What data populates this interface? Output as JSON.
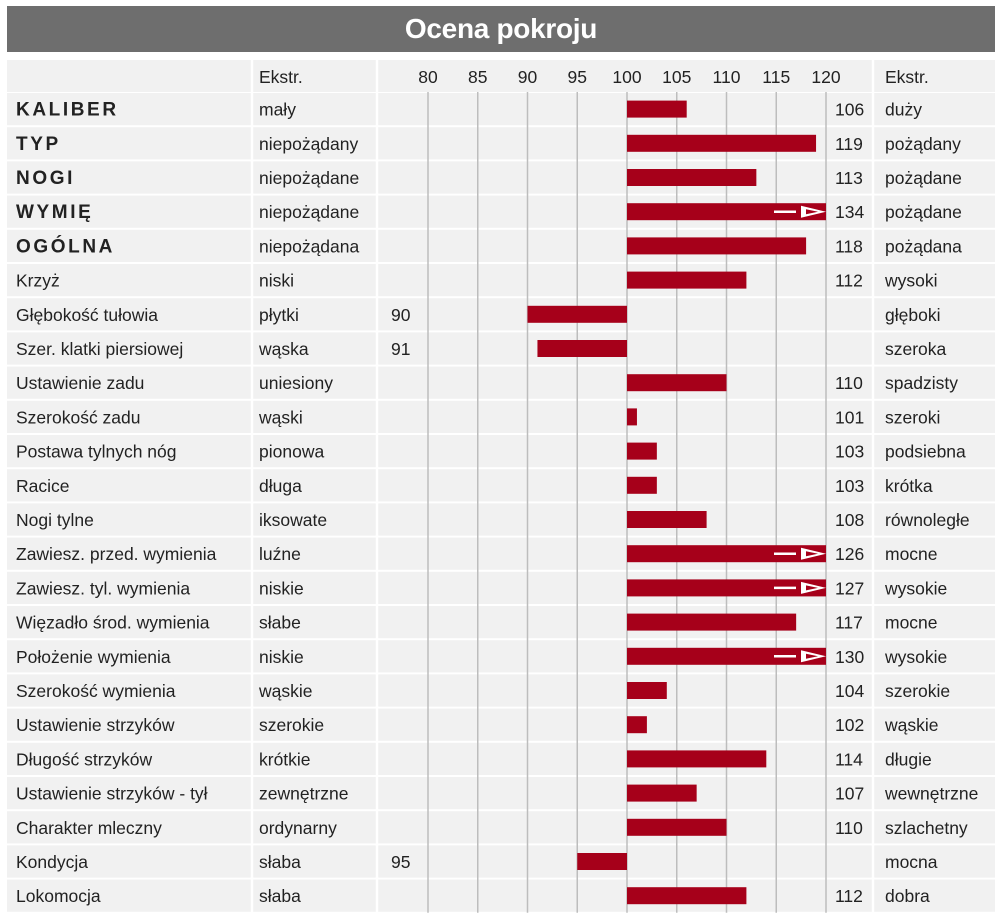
{
  "title": "Ocena pokroju",
  "header": {
    "left_extreme_label": "Ekstr.",
    "right_extreme_label": "Ekstr.",
    "ticks": [
      "80",
      "85",
      "90",
      "95",
      "100",
      "105",
      "110",
      "115",
      "120"
    ]
  },
  "colors": {
    "bar": "#a6001a",
    "title_background": "#6e6e6e",
    "row_shade": "#f1f1f1",
    "grid": "#bdbdbd"
  },
  "chart_data": {
    "type": "bar",
    "orientation": "horizontal",
    "title": "Ocena pokroju",
    "baseline": 100,
    "xlim": [
      80,
      120
    ],
    "xticks": [
      80,
      85,
      90,
      95,
      100,
      105,
      110,
      115,
      120
    ],
    "grid": true,
    "overflow_marker": "arrow for values beyond 120",
    "rows": [
      {
        "trait": "KALIBER",
        "major": true,
        "left": "mały",
        "value": 106,
        "right": "duży"
      },
      {
        "trait": "TYP",
        "major": true,
        "left": "niepożądany",
        "value": 119,
        "right": "pożądany"
      },
      {
        "trait": "NOGI",
        "major": true,
        "left": "niepożądane",
        "value": 113,
        "right": "pożądane"
      },
      {
        "trait": "WYMIĘ",
        "major": true,
        "left": "niepożądane",
        "value": 134,
        "right": "pożądane"
      },
      {
        "trait": "OGÓLNA",
        "major": true,
        "left": "niepożądana",
        "value": 118,
        "right": "pożądana"
      },
      {
        "trait": "Krzyż",
        "major": false,
        "left": "niski",
        "value": 112,
        "right": "wysoki"
      },
      {
        "trait": "Głębokość tułowia",
        "major": false,
        "left": "płytki",
        "value": 90,
        "right": "głęboki"
      },
      {
        "trait": "Szer. klatki piersiowej",
        "major": false,
        "left": "wąska",
        "value": 91,
        "right": "szeroka"
      },
      {
        "trait": "Ustawienie zadu",
        "major": false,
        "left": "uniesiony",
        "value": 110,
        "right": "spadzisty"
      },
      {
        "trait": "Szerokość zadu",
        "major": false,
        "left": "wąski",
        "value": 101,
        "right": "szeroki"
      },
      {
        "trait": "Postawa tylnych nóg",
        "major": false,
        "left": "pionowa",
        "value": 103,
        "right": "podsiebna"
      },
      {
        "trait": "Racice",
        "major": false,
        "left": "długa",
        "value": 103,
        "right": "krótka"
      },
      {
        "trait": "Nogi tylne",
        "major": false,
        "left": "iksowate",
        "value": 108,
        "right": "równoległe"
      },
      {
        "trait": "Zawiesz. przed. wymienia",
        "major": false,
        "left": "luźne",
        "value": 126,
        "right": "mocne"
      },
      {
        "trait": "Zawiesz. tyl. wymienia",
        "major": false,
        "left": "niskie",
        "value": 127,
        "right": "wysokie"
      },
      {
        "trait": "Więzadło środ. wymienia",
        "major": false,
        "left": "słabe",
        "value": 117,
        "right": "mocne"
      },
      {
        "trait": "Położenie wymienia",
        "major": false,
        "left": "niskie",
        "value": 130,
        "right": "wysokie"
      },
      {
        "trait": "Szerokość wymienia",
        "major": false,
        "left": "wąskie",
        "value": 104,
        "right": "szerokie"
      },
      {
        "trait": "Ustawienie strzyków",
        "major": false,
        "left": "szerokie",
        "value": 102,
        "right": "wąskie"
      },
      {
        "trait": "Długość strzyków",
        "major": false,
        "left": "krótkie",
        "value": 114,
        "right": "długie"
      },
      {
        "trait": "Ustawienie strzyków - tył",
        "major": false,
        "left": "zewnętrzne",
        "value": 107,
        "right": "wewnętrzne"
      },
      {
        "trait": "Charakter mleczny",
        "major": false,
        "left": "ordynarny",
        "value": 110,
        "right": "szlachetny"
      },
      {
        "trait": "Kondycja",
        "major": false,
        "left": "słaba",
        "value": 95,
        "right": "mocna"
      },
      {
        "trait": "Lokomocja",
        "major": false,
        "left": "słaba",
        "value": 112,
        "right": "dobra"
      }
    ]
  }
}
